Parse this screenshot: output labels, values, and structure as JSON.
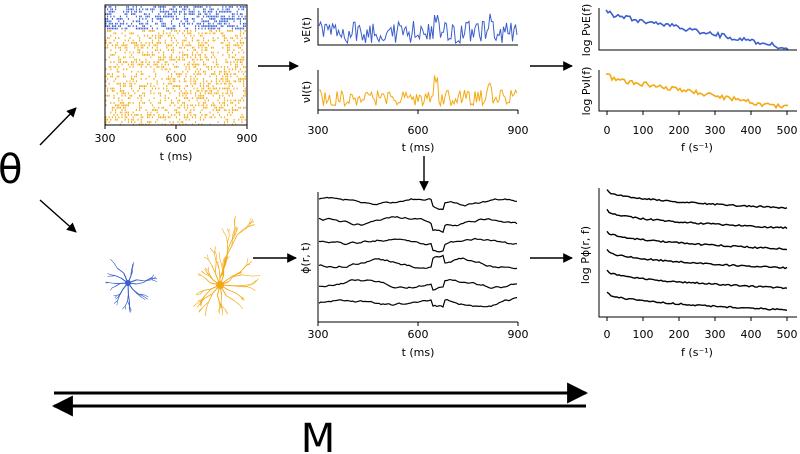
{
  "colors": {
    "excitatory": "#3a5fcd",
    "inhibitory": "#f4a914",
    "ink": "#000000"
  },
  "symbols": {
    "theta": "θ",
    "model": "M"
  },
  "raster": {
    "xlabel": "t (ms)",
    "xticks": [
      "300",
      "600",
      "900"
    ]
  },
  "rates": {
    "xlabel": "t (ms)",
    "xticks": [
      "300",
      "600",
      "900"
    ],
    "ylabel_e": "νE(t)",
    "ylabel_i": "νI(t)"
  },
  "spectra_top": {
    "xlabel": "f (s⁻¹)",
    "xticks": [
      "0",
      "100",
      "200",
      "300",
      "400",
      "500"
    ],
    "ylabel_e": "log PνE(f)",
    "ylabel_i": "log PνI(f)"
  },
  "lfp": {
    "xlabel": "t (ms)",
    "xticks": [
      "300",
      "600",
      "900"
    ],
    "ylabel": "ϕ(r, t)"
  },
  "spectra_bottom": {
    "xlabel": "f (s⁻¹)",
    "xticks": [
      "0",
      "100",
      "200",
      "300",
      "400",
      "500"
    ],
    "ylabel": "log Pϕ(r, f)"
  },
  "icons": {
    "neuron_e": "blue-neuron-morphology-icon",
    "neuron_i": "orange-neuron-morphology-icon"
  }
}
